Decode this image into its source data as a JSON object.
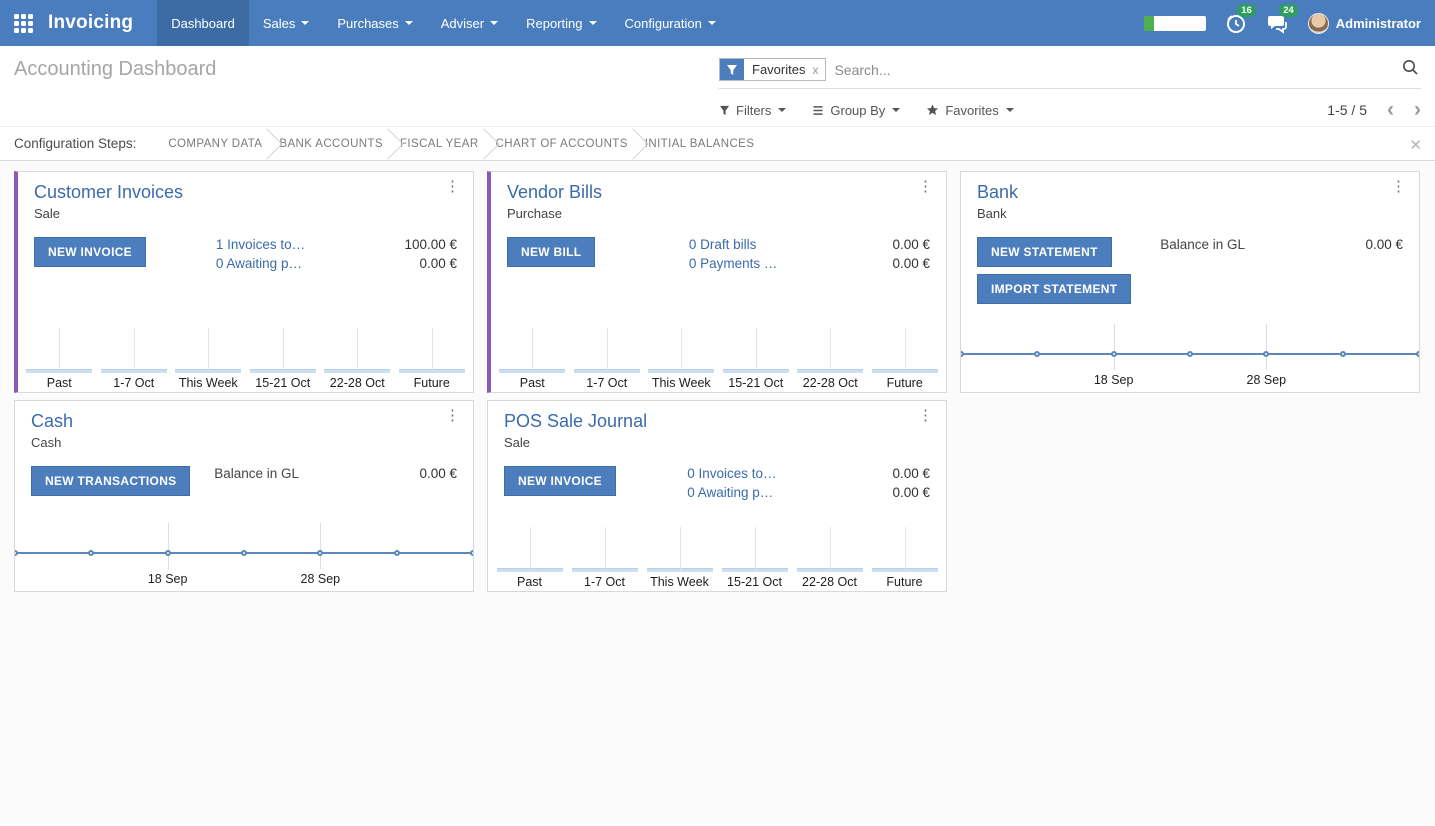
{
  "navbar": {
    "brand": "Invoicing",
    "menu": [
      {
        "label": "Dashboard",
        "active": true
      },
      {
        "label": "Sales"
      },
      {
        "label": "Purchases"
      },
      {
        "label": "Adviser"
      },
      {
        "label": "Reporting"
      },
      {
        "label": "Configuration"
      }
    ],
    "activity_badge": "16",
    "messages_badge": "24",
    "user": "Administrator"
  },
  "control_panel": {
    "title": "Accounting Dashboard",
    "search": {
      "facet": "Favorites",
      "facet_remove": "x",
      "placeholder": "Search..."
    },
    "filters_label": "Filters",
    "group_by_label": "Group By",
    "favorites_label": "Favorites",
    "pager": "1-5 / 5"
  },
  "config_steps": {
    "label": "Configuration Steps:",
    "steps": [
      "COMPANY DATA",
      "BANK ACCOUNTS",
      "FISCAL YEAR",
      "CHART OF ACCOUNTS",
      "INITIAL BALANCES"
    ]
  },
  "colors": {
    "topbar": "#4a7dbd",
    "accent_stripe": "#8c5ab4",
    "button": "#4c7dbd",
    "badge_green": "#2d9e5f",
    "line_blue": "#5b87bd"
  },
  "cards": [
    {
      "title": "Customer Invoices",
      "subtitle": "Sale",
      "buttons": [
        "NEW INVOICE"
      ],
      "stats": [
        {
          "label": "1 Invoices to…",
          "value": "100.00 €"
        },
        {
          "label": "0 Awaiting p…",
          "value": "0.00 €"
        }
      ],
      "chart": {
        "type": "bar",
        "categories": [
          "Past",
          "1-7 Oct",
          "This Week",
          "15-21 Oct",
          "22-28 Oct",
          "Future"
        ],
        "values": [
          0,
          0,
          0,
          0,
          0,
          0
        ]
      }
    },
    {
      "title": "Vendor Bills",
      "subtitle": "Purchase",
      "buttons": [
        "NEW BILL"
      ],
      "stats": [
        {
          "label": "0 Draft bills",
          "value": "0.00 €"
        },
        {
          "label": "0 Payments …",
          "value": "0.00 €"
        }
      ],
      "chart": {
        "type": "bar",
        "categories": [
          "Past",
          "1-7 Oct",
          "This Week",
          "15-21 Oct",
          "22-28 Oct",
          "Future"
        ],
        "values": [
          0,
          0,
          0,
          0,
          0,
          0
        ]
      }
    },
    {
      "title": "Bank",
      "subtitle": "Bank",
      "buttons": [
        "NEW STATEMENT",
        "IMPORT STATEMENT"
      ],
      "stats": [
        {
          "label": "Balance in GL",
          "value": "0.00 €"
        }
      ],
      "chart": {
        "type": "line",
        "categories": [
          "18 Sep",
          "28 Sep"
        ],
        "values": [
          0,
          0,
          0,
          0,
          0,
          0,
          0
        ]
      }
    },
    {
      "title": "Cash",
      "subtitle": "Cash",
      "buttons": [
        "NEW TRANSACTIONS"
      ],
      "stats": [
        {
          "label": "Balance in GL",
          "value": "0.00 €"
        }
      ],
      "chart": {
        "type": "line",
        "categories": [
          "18 Sep",
          "28 Sep"
        ],
        "values": [
          0,
          0,
          0,
          0,
          0,
          0,
          0
        ]
      }
    },
    {
      "title": "POS Sale Journal",
      "subtitle": "Sale",
      "buttons": [
        "NEW INVOICE"
      ],
      "stats": [
        {
          "label": "0 Invoices to…",
          "value": "0.00 €"
        },
        {
          "label": "0 Awaiting p…",
          "value": "0.00 €"
        }
      ],
      "chart": {
        "type": "bar",
        "categories": [
          "Past",
          "1-7 Oct",
          "This Week",
          "15-21 Oct",
          "22-28 Oct",
          "Future"
        ],
        "values": [
          0,
          0,
          0,
          0,
          0,
          0
        ]
      }
    }
  ]
}
